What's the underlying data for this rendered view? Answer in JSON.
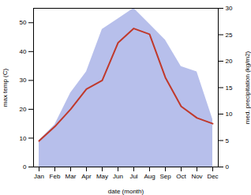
{
  "chart_data": {
    "type": "line",
    "xlabel": "date (month)",
    "ylabel": "max temp (C)",
    "y2label": "med. precipitation (kg/m2)",
    "categories": [
      "Jan",
      "Feb",
      "Mar",
      "Apr",
      "May",
      "Jun",
      "Jul",
      "Aug",
      "Sep",
      "Oct",
      "Nov",
      "Dec"
    ],
    "ylim": [
      0,
      55
    ],
    "yticks": [
      0,
      10,
      20,
      30,
      40,
      50
    ],
    "y2lim": [
      0,
      30
    ],
    "y2ticks": [
      0,
      5,
      10,
      15,
      20,
      25,
      30
    ],
    "series": [
      {
        "type": "area",
        "axis": "y2",
        "color": "#aab4e8",
        "values": [
          5,
          8,
          14,
          18,
          26,
          28,
          30,
          27,
          24,
          19,
          18,
          9
        ]
      },
      {
        "type": "line",
        "color": "#c0392b",
        "values": [
          9,
          14,
          20,
          27,
          30,
          43,
          48,
          46,
          31,
          21,
          17,
          15
        ]
      }
    ]
  }
}
